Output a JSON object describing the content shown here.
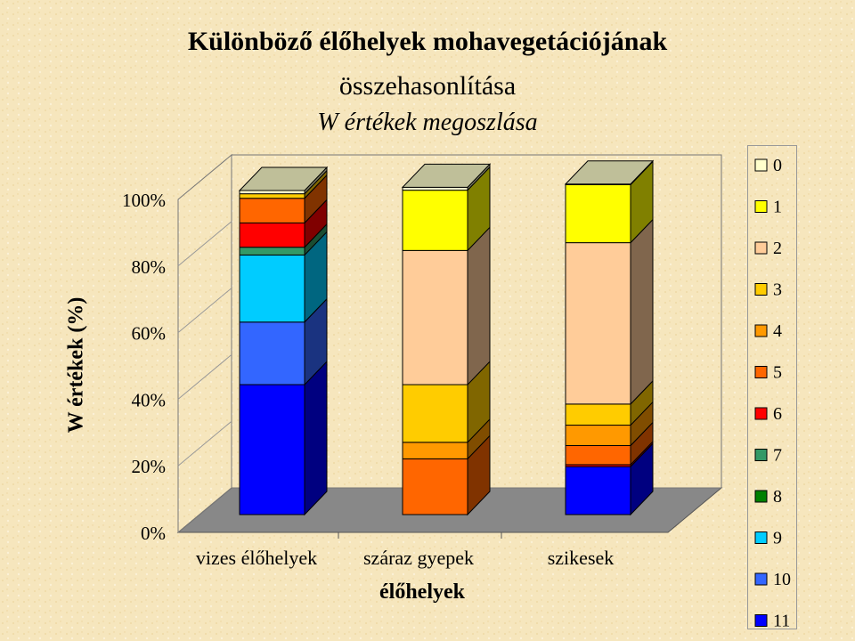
{
  "title": {
    "line1": "Különböző élőhelyek mohavegetációjának",
    "line2": "összehasonlítása",
    "line3": "W értékek megoszlása"
  },
  "chart_data": {
    "type": "bar",
    "stacked": true,
    "three_d": true,
    "title": "Különböző élőhelyek mohavegetációjának összehasonlítása W értékek megoszlása",
    "xlabel": "élőhelyek",
    "ylabel": "W értékek (%)",
    "categories": [
      "vizes élőhelyek",
      "száraz gyepek",
      "szikesek"
    ],
    "ylim": [
      0,
      100
    ],
    "yticks": [
      "0%",
      "20%",
      "40%",
      "60%",
      "80%",
      "100%"
    ],
    "legend_position": "right",
    "grid": false,
    "series": [
      {
        "name": "11",
        "color": "#0000ff",
        "values": [
          40.1,
          0,
          14.8
        ]
      },
      {
        "name": "10",
        "color": "#3366ff",
        "values": [
          19.3,
          0,
          0
        ]
      },
      {
        "name": "9",
        "color": "#00ccff",
        "values": [
          20.7,
          0,
          0
        ]
      },
      {
        "name": "8",
        "color": "#008000",
        "values": [
          0,
          0,
          0
        ]
      },
      {
        "name": "7",
        "color": "#339966",
        "values": [
          2.4,
          0,
          0
        ]
      },
      {
        "name": "6",
        "color": "#ff0000",
        "values": [
          7.5,
          0,
          0.6
        ]
      },
      {
        "name": "5",
        "color": "#ff6600",
        "values": [
          7.6,
          17.2,
          5.9
        ]
      },
      {
        "name": "4",
        "color": "#ff9900",
        "values": [
          0,
          5.1,
          6.3
        ]
      },
      {
        "name": "3",
        "color": "#ffcc00",
        "values": [
          1.4,
          17.8,
          6.5
        ]
      },
      {
        "name": "2",
        "color": "#ffcc99",
        "values": [
          0,
          41.4,
          49.8
        ]
      },
      {
        "name": "1",
        "color": "#ffff00",
        "values": [
          0,
          18.6,
          17.9
        ]
      },
      {
        "name": "0",
        "color": "#ffffcc",
        "values": [
          1.0,
          0.9,
          0.2
        ]
      }
    ]
  },
  "legend": {
    "items": [
      {
        "label": "0",
        "color": "#ffffcc"
      },
      {
        "label": "1",
        "color": "#ffff00"
      },
      {
        "label": "2",
        "color": "#ffcc99"
      },
      {
        "label": "3",
        "color": "#ffcc00"
      },
      {
        "label": "4",
        "color": "#ff9900"
      },
      {
        "label": "5",
        "color": "#ff6600"
      },
      {
        "label": "6",
        "color": "#ff0000"
      },
      {
        "label": "7",
        "color": "#339966"
      },
      {
        "label": "8",
        "color": "#008000"
      },
      {
        "label": "9",
        "color": "#00ccff"
      },
      {
        "label": "10",
        "color": "#3366ff"
      },
      {
        "label": "11",
        "color": "#0000ff"
      }
    ]
  }
}
